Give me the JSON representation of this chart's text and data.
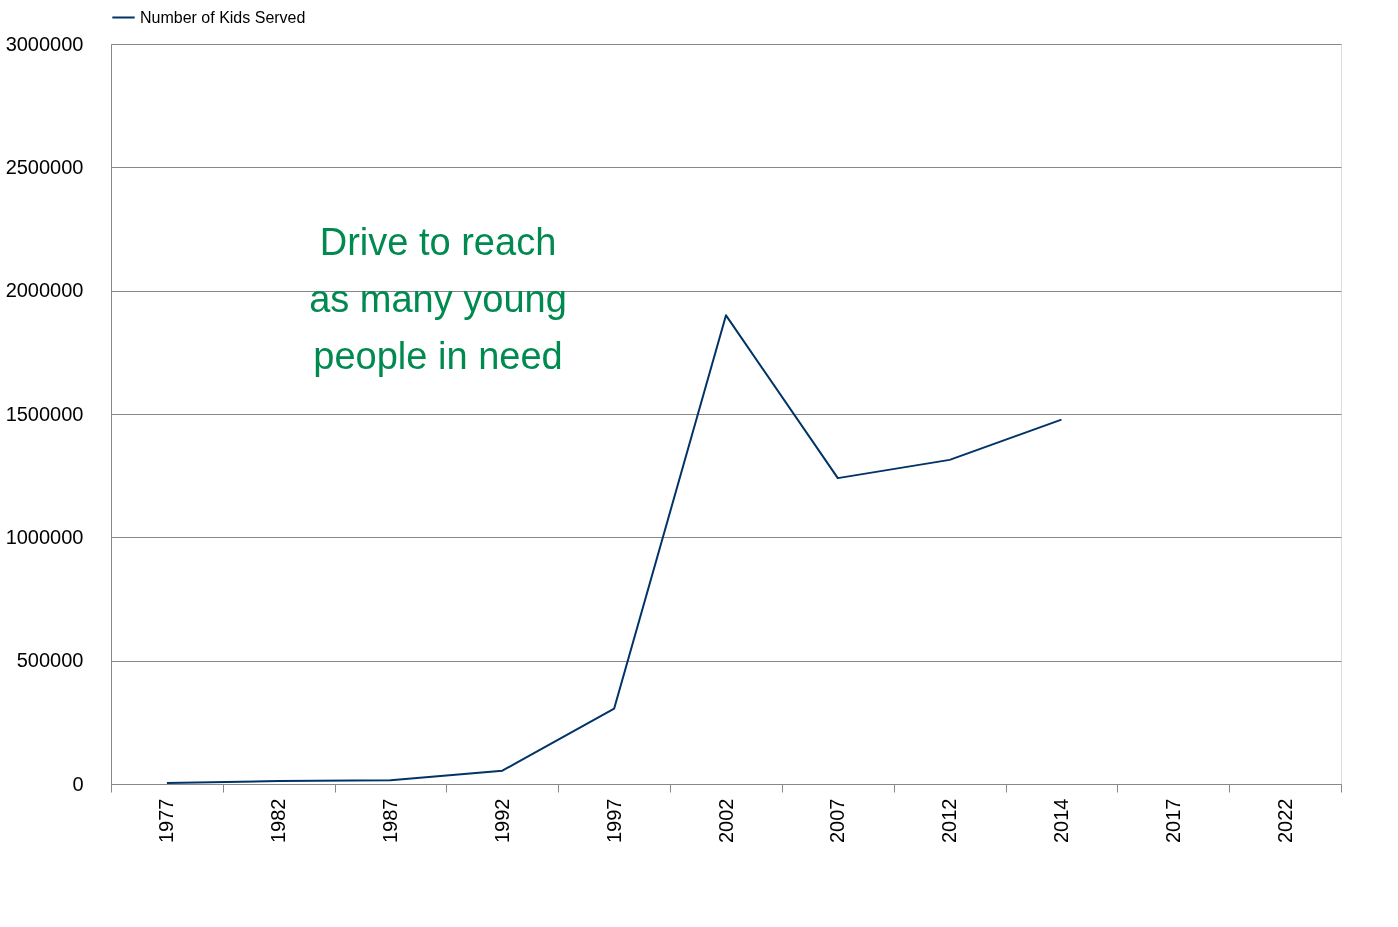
{
  "chart_data": {
    "type": "line",
    "categories": [
      "1977",
      "1982",
      "1987",
      "1992",
      "1997",
      "2002",
      "2007",
      "2012",
      "2014",
      "2017",
      "2022"
    ],
    "series": [
      {
        "name": "Number of Kids Served",
        "color": "#003366",
        "values": [
          4000,
          12000,
          15000,
          54000,
          306000,
          1900000,
          1240000,
          1314000,
          1477000,
          null,
          null
        ]
      }
    ],
    "ylim": [
      0,
      3000000
    ],
    "yticks": [
      0,
      500000,
      1000000,
      1500000,
      2000000,
      2500000,
      3000000
    ],
    "grid": "y",
    "legend": "top",
    "marker": "none",
    "line_style": "solid",
    "annotations": [
      "Drive to reach as many young people in need"
    ]
  }
}
